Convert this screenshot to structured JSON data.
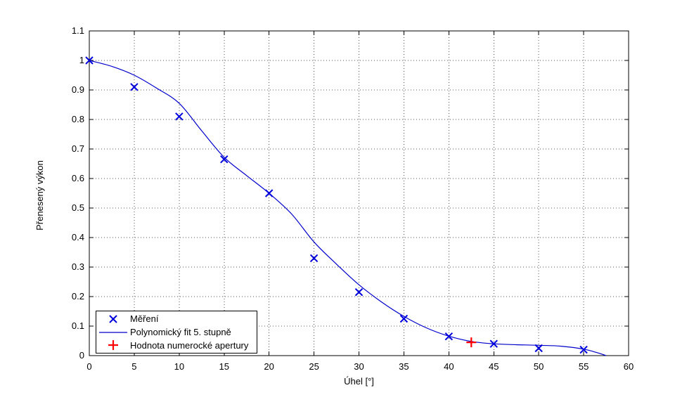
{
  "chart_data": {
    "type": "scatter",
    "title": "",
    "xlabel": "Úhel [°]",
    "ylabel": "Přenesený výkon",
    "xlim": [
      0,
      60
    ],
    "ylim": [
      0,
      1.1
    ],
    "grid": "dotted",
    "background_color": "#ffffff",
    "axis_color": "#000000",
    "grid_color": "#555555",
    "xticks": [
      {
        "v": 0,
        "label": "0"
      },
      {
        "v": 5,
        "label": "5"
      },
      {
        "v": 10,
        "label": "10"
      },
      {
        "v": 15,
        "label": "15"
      },
      {
        "v": 20,
        "label": "20"
      },
      {
        "v": 25,
        "label": "25"
      },
      {
        "v": 30,
        "label": "30"
      },
      {
        "v": 35,
        "label": "35"
      },
      {
        "v": 40,
        "label": "40"
      },
      {
        "v": 45,
        "label": "45"
      },
      {
        "v": 50,
        "label": "50"
      },
      {
        "v": 55,
        "label": "55"
      },
      {
        "v": 60,
        "label": "60"
      }
    ],
    "yticks": [
      {
        "v": 0,
        "label": "0"
      },
      {
        "v": 0.1,
        "label": "0.1"
      },
      {
        "v": 0.2,
        "label": "0.2"
      },
      {
        "v": 0.3,
        "label": "0.3"
      },
      {
        "v": 0.4,
        "label": "0.4"
      },
      {
        "v": 0.5,
        "label": "0.5"
      },
      {
        "v": 0.6,
        "label": "0.6"
      },
      {
        "v": 0.7,
        "label": "0.7"
      },
      {
        "v": 0.8,
        "label": "0.8"
      },
      {
        "v": 0.9,
        "label": "0.9"
      },
      {
        "v": 1,
        "label": "1"
      },
      {
        "v": 1.1,
        "label": "1.1"
      }
    ],
    "series": [
      {
        "name": "Měření",
        "type": "scatter",
        "marker": "x",
        "color": "#0000dd",
        "points": [
          [
            0,
            1.0
          ],
          [
            5,
            0.91
          ],
          [
            10,
            0.81
          ],
          [
            15,
            0.665
          ],
          [
            20,
            0.55
          ],
          [
            25,
            0.33
          ],
          [
            30,
            0.215
          ],
          [
            35,
            0.125
          ],
          [
            40,
            0.065
          ],
          [
            45,
            0.04
          ],
          [
            50,
            0.025
          ],
          [
            55,
            0.02
          ]
        ]
      },
      {
        "name": "Polynomický fit 5. stupně",
        "type": "line",
        "marker": "none",
        "color": "#0000cc",
        "points": [
          [
            0,
            1.0
          ],
          [
            2.5,
            0.98
          ],
          [
            5,
            0.95
          ],
          [
            7.5,
            0.906
          ],
          [
            10,
            0.855
          ],
          [
            12.5,
            0.762
          ],
          [
            15,
            0.672
          ],
          [
            17.5,
            0.61
          ],
          [
            20,
            0.55
          ],
          [
            22.5,
            0.48
          ],
          [
            25,
            0.385
          ],
          [
            27.5,
            0.31
          ],
          [
            30,
            0.24
          ],
          [
            32.5,
            0.182
          ],
          [
            35,
            0.133
          ],
          [
            37.5,
            0.094
          ],
          [
            40,
            0.066
          ],
          [
            42.5,
            0.048
          ],
          [
            45,
            0.04
          ],
          [
            47.5,
            0.037
          ],
          [
            50,
            0.035
          ],
          [
            52.5,
            0.032
          ],
          [
            55,
            0.022
          ],
          [
            56.5,
            0.01
          ],
          [
            57.5,
            0.0
          ]
        ]
      },
      {
        "name": "Hodnota numerocké apertury",
        "type": "scatter",
        "marker": "+",
        "color": "#ff0000",
        "points": [
          [
            42.5,
            0.045
          ]
        ]
      }
    ],
    "legend": {
      "position": "bottom-left"
    }
  }
}
